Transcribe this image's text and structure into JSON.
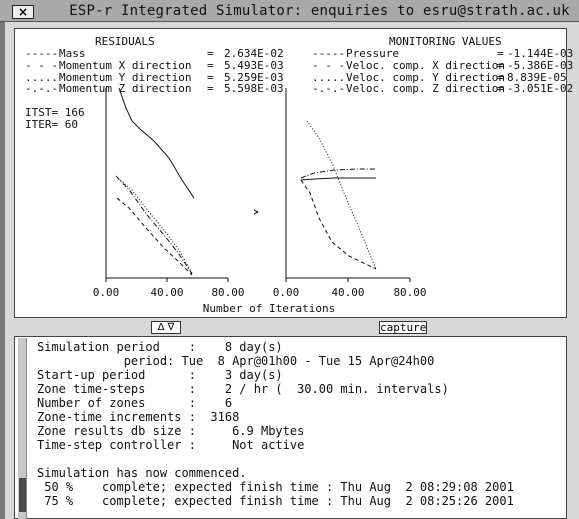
{
  "window": {
    "title": "ESP-r Integrated Simulator: enquiries to esru@strath.ac.uk",
    "close_label": "×"
  },
  "graph": {
    "residuals_title": "RESIDUALS",
    "monitoring_title": "MONITORING VALUES",
    "residuals": [
      {
        "style": "-----",
        "name": "Mass",
        "value": "2.634E-02"
      },
      {
        "style": "- - -",
        "name": "Momentum X direction",
        "value": "5.493E-03"
      },
      {
        "style": ".....",
        "name": "Momentum Y direction",
        "value": "5.259E-03"
      },
      {
        "style": "-.-.-",
        "name": "Momentum Z direction",
        "value": "5.598E-03"
      }
    ],
    "monitoring": [
      {
        "style": "-----",
        "name": "Pressure",
        "value": "-1.144E-03"
      },
      {
        "style": "- - -",
        "name": "Veloc. comp. X direction",
        "value": "-5.386E-03"
      },
      {
        "style": ".....",
        "name": "Veloc. comp. Y direction",
        "value": "8.839E-05"
      },
      {
        "style": "-.-.-",
        "name": "Veloc. comp. Z direction",
        "value": "-3.051E-02"
      }
    ],
    "eq": "=",
    "itst_label": "ITST= 166",
    "iter_label": "ITER=  60",
    "x_ticks": [
      "0.00",
      "40.00",
      "80.00"
    ],
    "x_axis_label": "Number of Iterations"
  },
  "controls": {
    "toggle_label": "Δ ∇",
    "capture_label": "capture"
  },
  "report": {
    "lines": [
      "Simulation period    :    8 day(s)",
      "            period: Tue  8 Apr@01h00 - Tue 15 Apr@24h00",
      "Start-up period      :    3 day(s)",
      "Zone time-steps      :    2 / hr (  30.00 min. intervals)",
      "Number of zones      :    6",
      "Zone-time increments :  3168",
      "Zone results db size :     6.9 Mbytes",
      "Time-step controller :     Not active",
      "",
      "Simulation has now commenced.",
      " 50 %    complete; expected finish time : Thu Aug  2 08:29:08 2001",
      " 75 %    complete; expected finish time : Thu Aug  2 08:25:26 2001"
    ]
  }
}
